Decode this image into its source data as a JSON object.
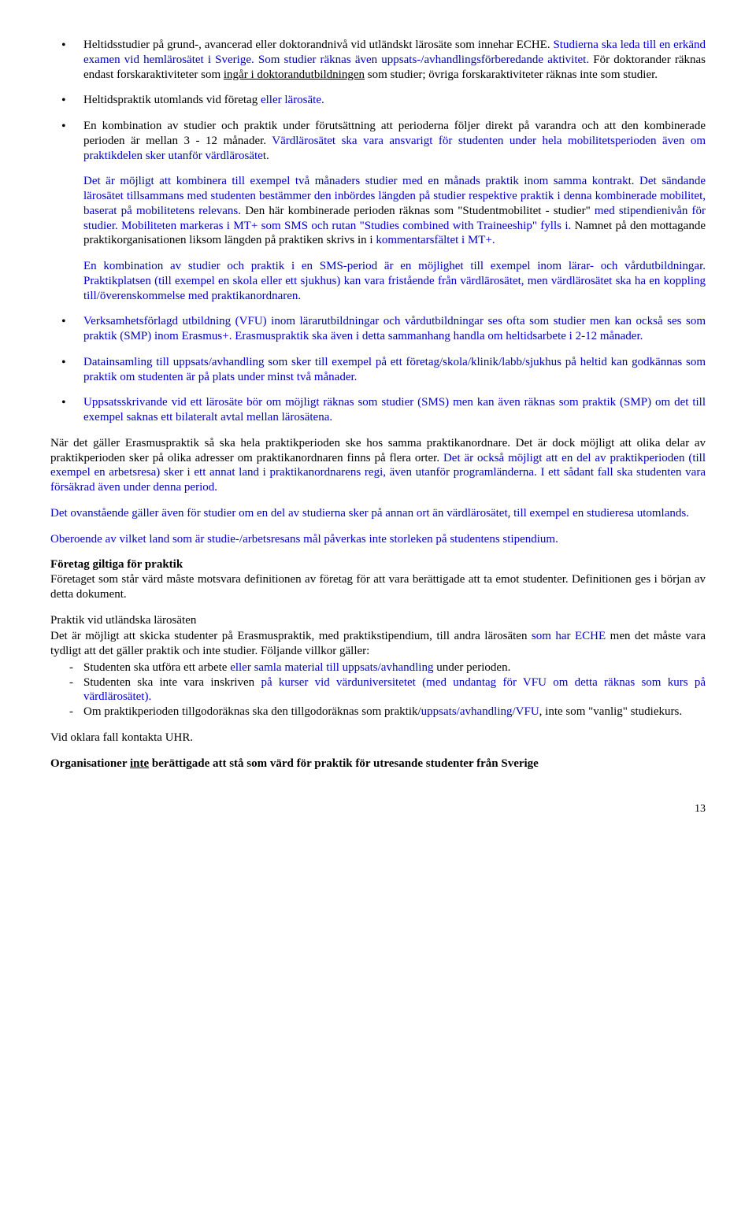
{
  "bullets": {
    "b1": {
      "t1": "Heltidsstudier på grund-, avancerad eller doktorandnivå vid utländskt lärosäte som innehar ECHE. ",
      "t2": "Studierna ska leda till en erkänd examen vid hemlärosätet i Sverige. ",
      "t3": "Som studier räknas även uppsats-/avhandlingsförberedande aktivitet. ",
      "t4": "För doktorander räknas endast forskaraktiviteter som ",
      "t5a": "ingår i doktorandutbildningen",
      "t5b": " som studier; övriga forskaraktiviteter räknas inte som studier."
    },
    "b2": {
      "t1": "Heltidspraktik utomlands vid företag ",
      "t2": "eller lärosäte."
    },
    "b3": {
      "p1": {
        "t1": "En kombination av studier och praktik under förutsättning att perioderna följer direkt på varandra och att den kombinerade perioden är mellan 3 - 12 månader. ",
        "t2": "Värdlärosätet ska vara ansvarigt för studenten under hela mobilitetsperioden även om praktikdelen sker utanför värdlärosätet."
      },
      "p2": {
        "t1": "Det är möjligt att kombinera till exempel två månaders studier med en månads praktik inom samma kontrakt.",
        "t2": " Det sändande lärosätet tillsammans med studenten bestämmer den inbördes längden på studier respektive praktik i denna kombinerade mobilitet, baserat på mobilitetens relevans.",
        "t3": " Den här kombinerade perioden räknas som \"Studentmobilitet - studier\" ",
        "t4": "med stipendienivån för studier. Mobiliteten markeras i MT+ som SMS och rutan \"Studies combined with Traineeship\" fylls i.",
        "t5": " Namnet på den mottagande praktikorganisationen liksom längden på praktiken skrivs in i ",
        "t6": "kommentarsfältet i MT+."
      },
      "p3": {
        "t1": "En kombination av studier och praktik i en SMS-period är en möjlighet till exempel inom lärar- och vårdutbildningar.",
        "t2": " Praktikplatsen (till exempel en skola eller ett sjukhus) kan vara fristående från värdlärosätet, men värdlärosätet ska ha en koppling till/överenskommelse med praktikanordnaren."
      }
    },
    "b4": {
      "t1": "Verksamhetsförlagd utbildning (VFU) inom lärarutbildningar och vårdutbildningar ses ofta som studier men kan också ses som praktik (SMP) inom Erasmus+. ",
      "t2": " Erasmuspraktik ska även i detta sammanhang handla om heltidsarbete i 2-12 månader."
    },
    "b5": {
      "t1": "Datainsamling till uppsats/avhandling som sker till exempel på ett företag/skola/klinik/labb/sjukhus på heltid kan godkännas som praktik om studenten är på plats under minst två månader."
    },
    "b6": {
      "t1": "Uppsatsskrivande vid ett lärosäte bör om möjligt räknas som studier (SMS) men kan även räknas som praktik (SMP) om det till exempel saknas ett bilateralt avtal mellan lärosätena."
    }
  },
  "para1": {
    "t1": "När det gäller Erasmuspraktik så ska hela praktikperioden ske hos samma praktikanordnare. Det är dock möjligt att olika delar av praktikperioden sker på olika adresser om praktikanordnaren finns på flera orter. ",
    "t2": "Det är också möjligt att en del av praktikperioden (till exempel en arbetsresa) sker i ett annat land i praktikanordnarens regi, även utanför programländerna. I ett sådant fall ska studenten vara försäkrad även under denna period."
  },
  "para2": "Det ovanstående gäller även för studier om en del av studierna sker på annan ort än värdlärosätet, till exempel en studieresa utomlands.",
  "para3": "Oberoende av vilket land som är studie-/arbetsresans mål påverkas inte storleken på studentens stipendium.",
  "sec1": {
    "heading": "Företag giltiga för praktik",
    "text": "Företaget som står värd måste motsvara definitionen av företag för att vara berättigade att ta emot studenter. Definitionen ges i början av detta dokument."
  },
  "sec2": {
    "heading": "Praktik vid utländska lärosäten",
    "intro": {
      "t1": "Det är möjligt att skicka studenter på Erasmuspraktik, med praktikstipendium, till andra lärosäten ",
      "t2": "som har ECHE",
      "t3": " men det måste vara tydligt att det gäller praktik och inte studier. Följande villkor gäller:"
    },
    "d1": {
      "t1": "Studenten ska utföra ett arbete ",
      "t2": "eller samla material till uppsats/avhandling",
      "t3": " under perioden."
    },
    "d2": {
      "t1": "Studenten ska inte vara inskriven ",
      "t2": "på kurser vid värduniversitetet (med undantag för VFU om detta räknas som kurs på värdlärosätet)."
    },
    "d3": {
      "t1": "Om praktikperioden tillgodoräknas ska den tillgodoräknas som praktik/",
      "t2": "uppsats/avhandling/VFU",
      "t3": ", inte som \"vanlig\"  studiekurs."
    }
  },
  "para4": "Vid oklara fall kontakta UHR.",
  "finalHeading": {
    "t1": "Organisationer ",
    "t2": "inte",
    "t3": " berättigade att stå som värd för praktik för utresande studenter från Sverige"
  },
  "pageNumber": "13"
}
